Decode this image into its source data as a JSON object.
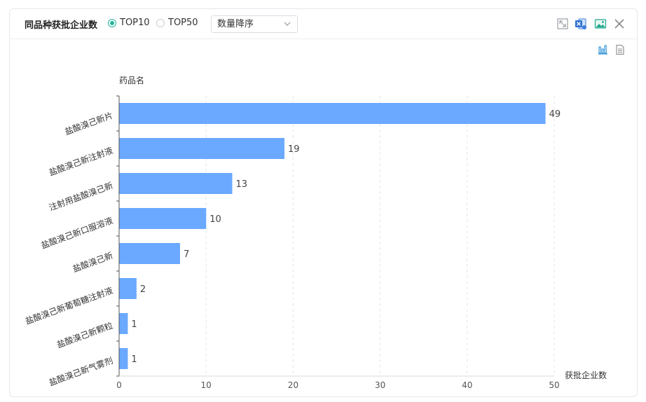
{
  "header": {
    "title": "同品种获批企业数",
    "options": [
      {
        "label": "TOP10",
        "checked": true
      },
      {
        "label": "TOP50",
        "checked": false
      }
    ],
    "sort_select": {
      "value": "数量降序"
    }
  },
  "icons": {
    "header": [
      "expand-icon",
      "excel-export-icon",
      "image-export-icon",
      "close-icon"
    ],
    "toolbar": [
      "bar-chart-view-icon",
      "table-view-icon"
    ]
  },
  "colors": {
    "bar": "#6aa9ff",
    "accent": "#22b59b"
  },
  "chart_data": {
    "type": "bar",
    "orientation": "horizontal",
    "categories": [
      "盐酸溴己新片",
      "盐酸溴己新注射液",
      "注射用盐酸溴己新",
      "盐酸溴己新口服溶液",
      "盐酸溴己新",
      "盐酸溴己新葡萄糖注射液",
      "盐酸溴己新颗粒",
      "盐酸溴己新气雾剂"
    ],
    "values": [
      49,
      19,
      13,
      10,
      7,
      2,
      1,
      1
    ],
    "ylabel": "药品名",
    "xlabel": "获批企业数",
    "xlim": [
      0,
      50
    ],
    "xticks": [
      0,
      10,
      20,
      30,
      40,
      50
    ],
    "grid": "vertical-dashed",
    "data_labels": true
  }
}
